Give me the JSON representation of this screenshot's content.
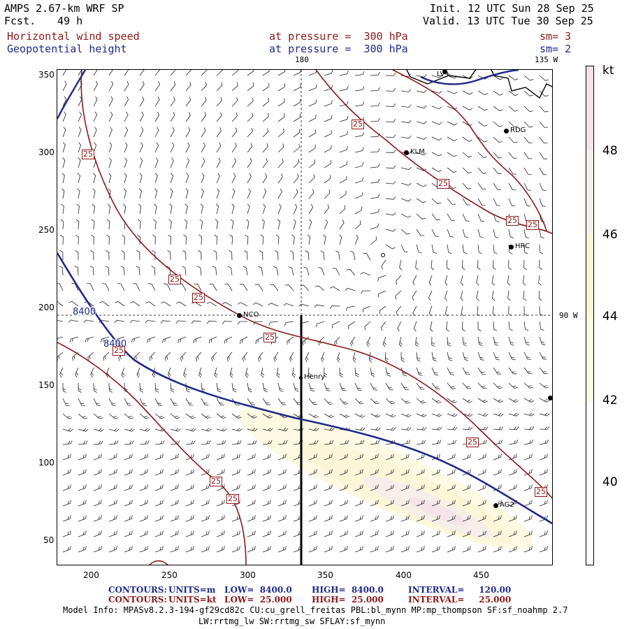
{
  "header": {
    "model": "AMPS 2.67-km WRF SP",
    "fcst_label": "Fcst.",
    "fcst_value": "49 h",
    "init": "Init. 12 UTC Sun 28 Sep 25",
    "valid": "Valid. 13 UTC Tue 30 Sep 25",
    "field1": "Horizontal wind speed",
    "field1_level": "at pressure =  300 hPa",
    "field1_sm": "sm= 3",
    "field2": "Geopotential height",
    "field2_level": "at pressure =  300 hPa",
    "field2_sm": "sm= 2"
  },
  "map": {
    "x_ticks": [
      "200",
      "250",
      "300",
      "350",
      "400",
      "450"
    ],
    "y_ticks": [
      "350",
      "300",
      "250",
      "200",
      "150",
      "100",
      "50"
    ],
    "lon_top_180": "180",
    "lon_top_135": "135 W",
    "lon_right_90": "90 W",
    "height_labels": [
      "8400",
      "8400"
    ],
    "speed_label": "25",
    "stations": [
      "LV+",
      "RDG",
      "KLM",
      "HRC",
      "NCO",
      "Henry",
      "AG2"
    ]
  },
  "colorbar": {
    "unit": "kt",
    "labels": [
      "48",
      "46",
      "44",
      "42",
      "40"
    ],
    "colors": [
      "#f4e4ea",
      "#f5eee9",
      "#fcf6d9",
      "#fdf9e2",
      "#ffffff"
    ]
  },
  "footer": {
    "c1_head": "CONTOURS:",
    "c1_units": "UNITS=m",
    "c1_low": "LOW=  8400.0",
    "c1_high": "HIGH=  8400.0",
    "c1_int": "INTERVAL=     120.00",
    "c2_head": "CONTOURS:",
    "c2_units": "UNITS=kt",
    "c2_low": "LOW=  25.000",
    "c2_high": "HIGH=  25.000",
    "c2_int": "INTERVAL=     25.000",
    "info1": "Model Info: MPASv8.2.3-194-gf29cd82c CU:cu_grell_freitas PBL:bl_mynn MP:mp_thompson SF:sf_noahmp 2.7",
    "info2": "LW:rrtmg_lw SW:rrtmg_sw SFLAY:sf_mynn"
  }
}
